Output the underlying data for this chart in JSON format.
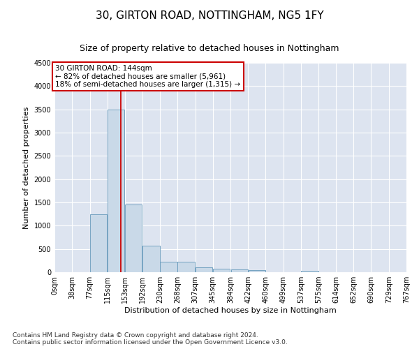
{
  "title": "30, GIRTON ROAD, NOTTINGHAM, NG5 1FY",
  "subtitle": "Size of property relative to detached houses in Nottingham",
  "xlabel": "Distribution of detached houses by size in Nottingham",
  "ylabel": "Number of detached properties",
  "footer_line1": "Contains HM Land Registry data © Crown copyright and database right 2024.",
  "footer_line2": "Contains public sector information licensed under the Open Government Licence v3.0.",
  "bin_edges": [
    0,
    38,
    77,
    115,
    153,
    192,
    230,
    268,
    307,
    345,
    384,
    422,
    460,
    499,
    537,
    575,
    614,
    652,
    690,
    729,
    767
  ],
  "bar_heights": [
    0,
    0,
    1250,
    3500,
    1450,
    575,
    220,
    220,
    110,
    80,
    55,
    50,
    0,
    0,
    30,
    0,
    0,
    0,
    0,
    0
  ],
  "bar_color": "#c9d9e8",
  "bar_edge_color": "#6699bb",
  "vline_x": 144,
  "vline_color": "#cc0000",
  "annotation_line1": "30 GIRTON ROAD: 144sqm",
  "annotation_line2": "← 82% of detached houses are smaller (5,961)",
  "annotation_line3": "18% of semi-detached houses are larger (1,315) →",
  "annotation_box_color": "#cc0000",
  "ylim": [
    0,
    4500
  ],
  "yticks": [
    0,
    500,
    1000,
    1500,
    2000,
    2500,
    3000,
    3500,
    4000,
    4500
  ],
  "background_color": "#dde4f0",
  "grid_color": "#ffffff",
  "title_fontsize": 11,
  "subtitle_fontsize": 9,
  "axis_label_fontsize": 8,
  "tick_fontsize": 7,
  "footer_fontsize": 6.5
}
